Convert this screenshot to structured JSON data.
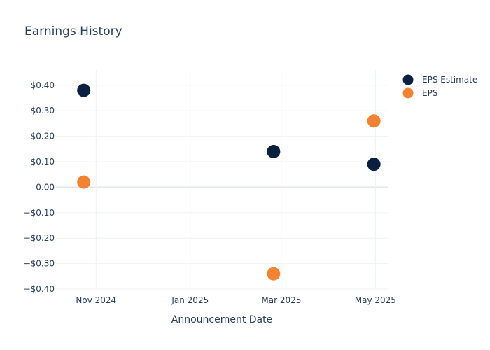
{
  "chart_data": {
    "type": "scatter",
    "title": "Earnings History",
    "xlabel": "Announcement Date",
    "ylabel": "",
    "x_ticks": [
      {
        "date": "2024-11-01",
        "label": "Nov 2024"
      },
      {
        "date": "2025-01-01",
        "label": "Jan 2025"
      },
      {
        "date": "2025-03-01",
        "label": "Mar 2025"
      },
      {
        "date": "2025-05-01",
        "label": "May 2025"
      }
    ],
    "y_ticks": [
      {
        "value": 0.4,
        "label": "$0.40"
      },
      {
        "value": 0.3,
        "label": "$0.30"
      },
      {
        "value": 0.2,
        "label": "$0.20"
      },
      {
        "value": 0.1,
        "label": "$0.10"
      },
      {
        "value": 0.0,
        "label": "0.00"
      },
      {
        "value": -0.1,
        "label": "−$0.10"
      },
      {
        "value": -0.2,
        "label": "−$0.20"
      },
      {
        "value": -0.3,
        "label": "−$0.30"
      },
      {
        "value": -0.4,
        "label": "−$0.40"
      }
    ],
    "xlim": [
      "2024-10-06",
      "2025-05-09"
    ],
    "ylim": [
      -0.4,
      0.46
    ],
    "grid": true,
    "legend": "top-right",
    "series": [
      {
        "name": "EPS Estimate",
        "color": "#0b1f3f",
        "points": [
          {
            "x": "2024-10-24",
            "y": 0.38
          },
          {
            "x": "2025-02-24",
            "y": 0.14
          },
          {
            "x": "2025-04-30",
            "y": 0.09
          }
        ]
      },
      {
        "name": "EPS",
        "color": "#f58231",
        "points": [
          {
            "x": "2024-10-24",
            "y": 0.02
          },
          {
            "x": "2025-02-24",
            "y": -0.34
          },
          {
            "x": "2025-04-30",
            "y": 0.26
          }
        ]
      }
    ]
  }
}
